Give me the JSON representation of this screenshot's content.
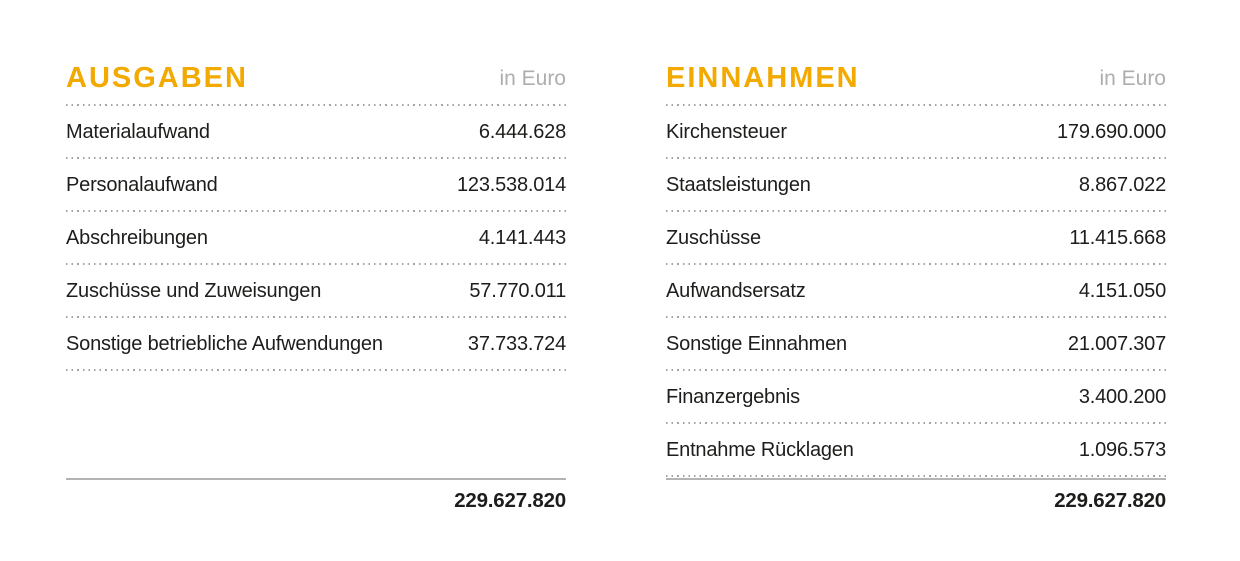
{
  "colors": {
    "accent_orange": "#f2a900",
    "muted_gray": "#aeaeae",
    "text": "#1d1d1b",
    "dotted_rule": "#a3a3a3",
    "total_rule": "#b3b3b3",
    "background": "#ffffff"
  },
  "tables": [
    {
      "title": "AUSGABEN",
      "unit_label": "in Euro",
      "rows": [
        {
          "label": "Materialaufwand",
          "value": "6.444.628"
        },
        {
          "label": "Personalaufwand",
          "value": "123.538.014"
        },
        {
          "label": "Abschreibungen",
          "value": "4.141.443"
        },
        {
          "label": "Zuschüsse und Zuweisungen",
          "value": "57.770.011"
        },
        {
          "label": "Sonstige betriebliche Aufwendungen",
          "value": "37.733.724"
        }
      ],
      "total": "229.627.820"
    },
    {
      "title": "EINNAHMEN",
      "unit_label": "in Euro",
      "rows": [
        {
          "label": "Kirchensteuer",
          "value": "179.690.000"
        },
        {
          "label": "Staatsleistungen",
          "value": "8.867.022"
        },
        {
          "label": "Zuschüsse",
          "value": "11.415.668"
        },
        {
          "label": "Aufwandsersatz",
          "value": "4.151.050"
        },
        {
          "label": "Sonstige Einnahmen",
          "value": "21.007.307"
        },
        {
          "label": "Finanzergebnis",
          "value": "3.400.200"
        },
        {
          "label": "Entnahme Rücklagen",
          "value": "1.096.573"
        }
      ],
      "total": "229.627.820"
    }
  ],
  "chart_data": [
    {
      "type": "table",
      "title": "AUSGABEN",
      "unit": "in Euro",
      "categories": [
        "Materialaufwand",
        "Personalaufwand",
        "Abschreibungen",
        "Zuschüsse und Zuweisungen",
        "Sonstige betriebliche Aufwendungen"
      ],
      "values": [
        6444628,
        123538014,
        4141443,
        57770011,
        37733724
      ],
      "total": 229627820
    },
    {
      "type": "table",
      "title": "EINNAHMEN",
      "unit": "in Euro",
      "categories": [
        "Kirchensteuer",
        "Staatsleistungen",
        "Zuschüsse",
        "Aufwandsersatz",
        "Sonstige Einnahmen",
        "Finanzergebnis",
        "Entnahme Rücklagen"
      ],
      "values": [
        179690000,
        8867022,
        11415668,
        4151050,
        21007307,
        3400200,
        1096573
      ],
      "total": 229627820
    }
  ]
}
